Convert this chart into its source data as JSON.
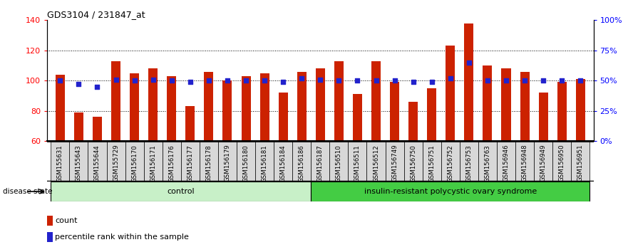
{
  "title": "GDS3104 / 231847_at",
  "samples": [
    "GSM155631",
    "GSM155643",
    "GSM155644",
    "GSM155729",
    "GSM156170",
    "GSM156171",
    "GSM156176",
    "GSM156177",
    "GSM156178",
    "GSM156179",
    "GSM156180",
    "GSM156181",
    "GSM156184",
    "GSM156186",
    "GSM156187",
    "GSM156510",
    "GSM156511",
    "GSM156512",
    "GSM156749",
    "GSM156750",
    "GSM156751",
    "GSM156752",
    "GSM156753",
    "GSM156763",
    "GSM156946",
    "GSM156948",
    "GSM156949",
    "GSM156950",
    "GSM156951"
  ],
  "counts": [
    104,
    79,
    76,
    113,
    105,
    108,
    103,
    83,
    106,
    100,
    103,
    105,
    92,
    106,
    108,
    113,
    91,
    113,
    99,
    86,
    95,
    123,
    138,
    110,
    108,
    106,
    92,
    99,
    101
  ],
  "percentile_ranks": [
    50,
    47,
    45,
    51,
    50,
    51,
    50,
    49,
    50,
    50,
    50,
    50,
    49,
    52,
    51,
    50,
    50,
    50,
    50,
    49,
    49,
    52,
    65,
    50,
    50,
    50,
    50,
    50,
    50
  ],
  "control_count": 14,
  "disease_label": "insulin-resistant polycystic ovary syndrome",
  "control_label": "control",
  "ylim_left": [
    60,
    140
  ],
  "ylim_right": [
    0,
    100
  ],
  "yticks_left": [
    60,
    80,
    100,
    120,
    140
  ],
  "yticks_right": [
    0,
    25,
    50,
    75,
    100
  ],
  "ytick_labels_right": [
    "0%",
    "25%",
    "50%",
    "75%",
    "100%"
  ],
  "bar_color": "#cc2200",
  "dot_color": "#2222cc",
  "control_box_color": "#c8f0c8",
  "disease_box_color": "#44cc44",
  "legend_count_label": "count",
  "legend_pct_label": "percentile rank within the sample",
  "grid_lines": [
    80,
    100,
    120
  ],
  "bar_bottom": 60,
  "bar_width": 0.5
}
